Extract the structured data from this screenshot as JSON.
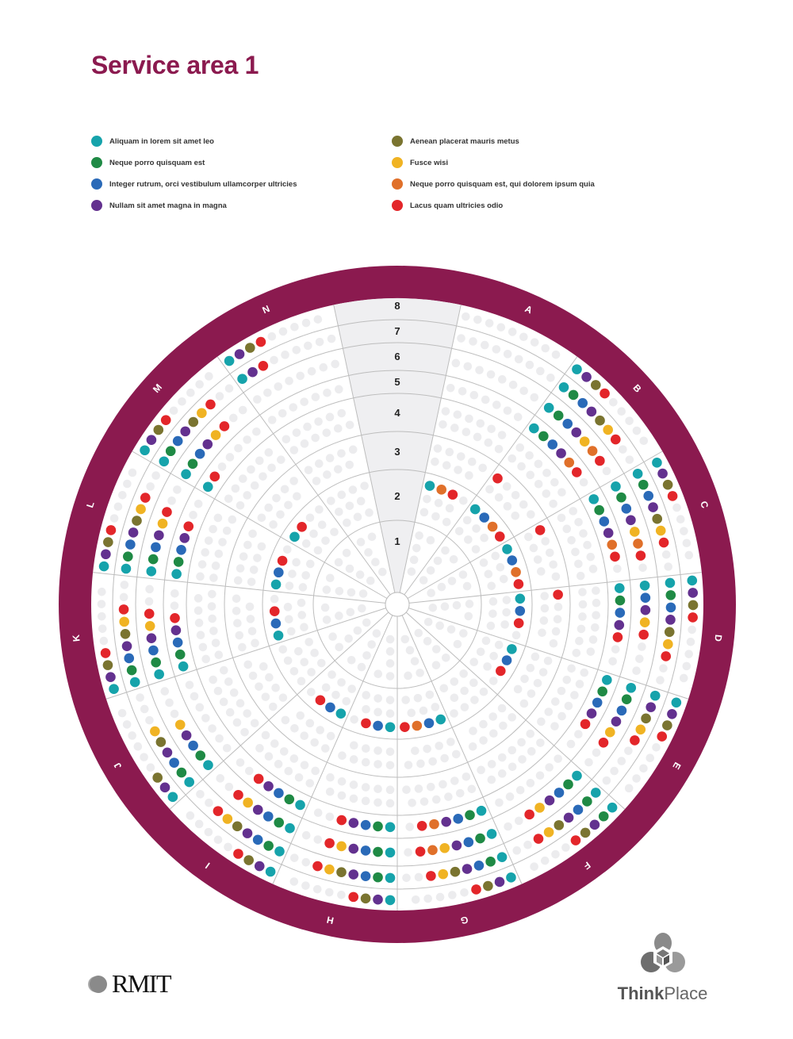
{
  "title": "Service area 1",
  "legend": [
    {
      "key": "teal",
      "label": "Aliquam in lorem sit amet leo",
      "color": "#16a3ab"
    },
    {
      "key": "green",
      "label": "Neque porro quisquam est",
      "color": "#1f8a45"
    },
    {
      "key": "blue",
      "label": "Integer rutrum, orci vestibulum ullamcorper ultricies",
      "color": "#2a6ab8"
    },
    {
      "key": "purple",
      "label": "Nullam sit amet magna in magna",
      "color": "#63318f"
    },
    {
      "key": "olive",
      "label": "Aenean placerat mauris metus",
      "color": "#7a7430"
    },
    {
      "key": "yellow",
      "label": "Fusce wisi",
      "color": "#f0b323"
    },
    {
      "key": "orange",
      "label": "Neque porro quisquam est, qui dolorem ipsum quia",
      "color": "#e0702a"
    },
    {
      "key": "red",
      "label": "Lacus quam ultricies odio",
      "color": "#e3262a"
    }
  ],
  "colors": {
    "brand": "#8b1a4f",
    "empty_dot": "#ececee",
    "grid": "#bdbdbd",
    "gap_fill": "#efeff1"
  },
  "chart_data": {
    "type": "radial-dot-matrix",
    "rings": [
      "1",
      "2",
      "3",
      "4",
      "5",
      "6",
      "7",
      "8"
    ],
    "sectors": [
      {
        "label": "A",
        "groups": [
          {
            "ring": 2,
            "dots": [
              "teal",
              "orange",
              "red"
            ]
          }
        ]
      },
      {
        "label": "B",
        "groups": [
          {
            "ring": 2,
            "dots": [
              "teal",
              "blue",
              "orange",
              "red"
            ]
          },
          {
            "ring": 3,
            "dots": [
              "red"
            ]
          },
          {
            "ring": 5,
            "dots": [
              "teal",
              "green",
              "blue",
              "purple",
              "orange",
              "red"
            ]
          },
          {
            "ring": 6,
            "dots": [
              "teal",
              "green",
              "blue",
              "purple",
              "yellow",
              "orange",
              "red"
            ]
          },
          {
            "ring": 7,
            "dots": [
              "teal",
              "green",
              "blue",
              "purple",
              "olive",
              "yellow",
              "red"
            ]
          },
          {
            "ring": 8,
            "dots": [
              "teal",
              "purple",
              "olive",
              "red"
            ]
          }
        ]
      },
      {
        "label": "C",
        "groups": [
          {
            "ring": 2,
            "dots": [
              "teal",
              "blue",
              "orange",
              "red"
            ]
          },
          {
            "ring": 3,
            "dots": [
              "red"
            ]
          },
          {
            "ring": 5,
            "dots": [
              "teal",
              "green",
              "blue",
              "purple",
              "orange",
              "red"
            ]
          },
          {
            "ring": 6,
            "dots": [
              "teal",
              "green",
              "blue",
              "purple",
              "yellow",
              "orange",
              "red"
            ]
          },
          {
            "ring": 7,
            "dots": [
              "teal",
              "green",
              "blue",
              "purple",
              "olive",
              "yellow",
              "red"
            ]
          },
          {
            "ring": 8,
            "dots": [
              "teal",
              "purple",
              "olive",
              "red"
            ]
          }
        ]
      },
      {
        "label": "D",
        "groups": [
          {
            "ring": 2,
            "dots": [
              "teal",
              "blue",
              "red"
            ]
          },
          {
            "ring": 3,
            "dots": [
              "red"
            ]
          },
          {
            "ring": 5,
            "dots": [
              "teal",
              "green",
              "blue",
              "purple",
              "red"
            ]
          },
          {
            "ring": 6,
            "dots": [
              "teal",
              "blue",
              "purple",
              "yellow",
              "red"
            ]
          },
          {
            "ring": 7,
            "dots": [
              "teal",
              "green",
              "blue",
              "purple",
              "olive",
              "yellow",
              "red"
            ]
          },
          {
            "ring": 8,
            "dots": [
              "teal",
              "purple",
              "olive",
              "red"
            ]
          }
        ]
      },
      {
        "label": "E",
        "groups": [
          {
            "ring": 2,
            "dots": [
              "teal",
              "blue",
              "red"
            ]
          },
          {
            "ring": 5,
            "dots": [
              "teal",
              "green",
              "blue",
              "purple",
              "red"
            ]
          },
          {
            "ring": 6,
            "dots": [
              "teal",
              "green",
              "blue",
              "purple",
              "yellow",
              "red"
            ]
          },
          {
            "ring": 7,
            "dots": [
              "teal",
              "purple",
              "olive",
              "yellow",
              "red"
            ]
          },
          {
            "ring": 8,
            "dots": [
              "teal",
              "purple",
              "olive",
              "red"
            ]
          }
        ]
      },
      {
        "label": "F",
        "groups": [
          {
            "ring": 6,
            "dots": [
              "teal",
              "green",
              "blue",
              "purple",
              "yellow",
              "red"
            ]
          },
          {
            "ring": 7,
            "dots": [
              "teal",
              "green",
              "blue",
              "purple",
              "olive",
              "yellow",
              "red"
            ]
          },
          {
            "ring": 8,
            "dots": [
              "teal",
              "green",
              "purple",
              "olive",
              "red"
            ]
          }
        ]
      },
      {
        "label": "G",
        "groups": [
          {
            "ring": 2,
            "dots": [
              "teal",
              "blue",
              "orange",
              "red"
            ]
          },
          {
            "ring": 5,
            "dots": [
              "teal",
              "green",
              "blue",
              "purple",
              "orange",
              "red"
            ]
          },
          {
            "ring": 6,
            "dots": [
              "teal",
              "green",
              "blue",
              "purple",
              "yellow",
              "orange",
              "red"
            ]
          },
          {
            "ring": 7,
            "dots": [
              "teal",
              "green",
              "blue",
              "purple",
              "olive",
              "yellow",
              "red"
            ]
          },
          {
            "ring": 8,
            "dots": [
              "teal",
              "purple",
              "olive",
              "red"
            ]
          }
        ]
      },
      {
        "label": "H",
        "groups": [
          {
            "ring": 2,
            "dots": [
              "teal",
              "blue",
              "red"
            ]
          },
          {
            "ring": 5,
            "dots": [
              "teal",
              "green",
              "blue",
              "purple",
              "red"
            ]
          },
          {
            "ring": 6,
            "dots": [
              "teal",
              "green",
              "blue",
              "purple",
              "yellow",
              "red"
            ]
          },
          {
            "ring": 7,
            "dots": [
              "teal",
              "green",
              "blue",
              "purple",
              "olive",
              "yellow",
              "red"
            ]
          },
          {
            "ring": 8,
            "dots": [
              "teal",
              "purple",
              "olive",
              "red"
            ]
          }
        ]
      },
      {
        "label": "I",
        "groups": [
          {
            "ring": 2,
            "dots": [
              "teal",
              "blue",
              "red"
            ]
          },
          {
            "ring": 5,
            "dots": [
              "teal",
              "green",
              "blue",
              "purple",
              "red"
            ]
          },
          {
            "ring": 6,
            "dots": [
              "teal",
              "green",
              "blue",
              "purple",
              "yellow",
              "red"
            ]
          },
          {
            "ring": 7,
            "dots": [
              "teal",
              "green",
              "blue",
              "purple",
              "olive",
              "yellow",
              "red"
            ]
          },
          {
            "ring": 8,
            "dots": [
              "teal",
              "purple",
              "olive",
              "red"
            ]
          }
        ]
      },
      {
        "label": "J",
        "groups": [
          {
            "ring": 6,
            "dots": [
              "teal",
              "green",
              "blue",
              "purple",
              "yellow"
            ]
          },
          {
            "ring": 7,
            "dots": [
              "teal",
              "green",
              "blue",
              "purple",
              "olive",
              "yellow"
            ]
          },
          {
            "ring": 8,
            "dots": [
              "teal",
              "purple",
              "olive"
            ]
          }
        ]
      },
      {
        "label": "K",
        "groups": [
          {
            "ring": 2,
            "dots": [
              "teal",
              "blue",
              "red"
            ]
          },
          {
            "ring": 5,
            "dots": [
              "teal",
              "green",
              "blue",
              "purple",
              "red"
            ]
          },
          {
            "ring": 6,
            "dots": [
              "teal",
              "green",
              "blue",
              "purple",
              "yellow",
              "red"
            ]
          },
          {
            "ring": 7,
            "dots": [
              "teal",
              "green",
              "blue",
              "purple",
              "olive",
              "yellow",
              "red"
            ]
          },
          {
            "ring": 8,
            "dots": [
              "teal",
              "purple",
              "olive",
              "red"
            ]
          }
        ]
      },
      {
        "label": "L",
        "groups": [
          {
            "ring": 2,
            "dots": [
              "teal",
              "blue",
              "red"
            ]
          },
          {
            "ring": 5,
            "dots": [
              "teal",
              "green",
              "blue",
              "purple",
              "red"
            ]
          },
          {
            "ring": 6,
            "dots": [
              "teal",
              "green",
              "blue",
              "purple",
              "yellow",
              "red"
            ]
          },
          {
            "ring": 7,
            "dots": [
              "teal",
              "green",
              "blue",
              "purple",
              "olive",
              "yellow",
              "red"
            ]
          },
          {
            "ring": 8,
            "dots": [
              "teal",
              "purple",
              "olive",
              "red"
            ]
          }
        ]
      },
      {
        "label": "M",
        "groups": [
          {
            "ring": 2,
            "dots": [
              "teal",
              "red"
            ]
          },
          {
            "ring": 5,
            "dots": [
              "teal",
              "red"
            ]
          },
          {
            "ring": 6,
            "dots": [
              "teal",
              "green",
              "blue",
              "purple",
              "yellow",
              "red"
            ]
          },
          {
            "ring": 7,
            "dots": [
              "teal",
              "green",
              "blue",
              "purple",
              "olive",
              "yellow",
              "red"
            ]
          },
          {
            "ring": 8,
            "dots": [
              "teal",
              "purple",
              "olive",
              "red"
            ]
          }
        ]
      },
      {
        "label": "N",
        "groups": [
          {
            "ring": 7,
            "dots": [
              "teal",
              "purple",
              "red"
            ]
          },
          {
            "ring": 8,
            "dots": [
              "teal",
              "purple",
              "olive",
              "red"
            ]
          }
        ]
      }
    ]
  },
  "logos": {
    "left": "RMIT",
    "right_part1": "Think",
    "right_part2": "Place"
  }
}
